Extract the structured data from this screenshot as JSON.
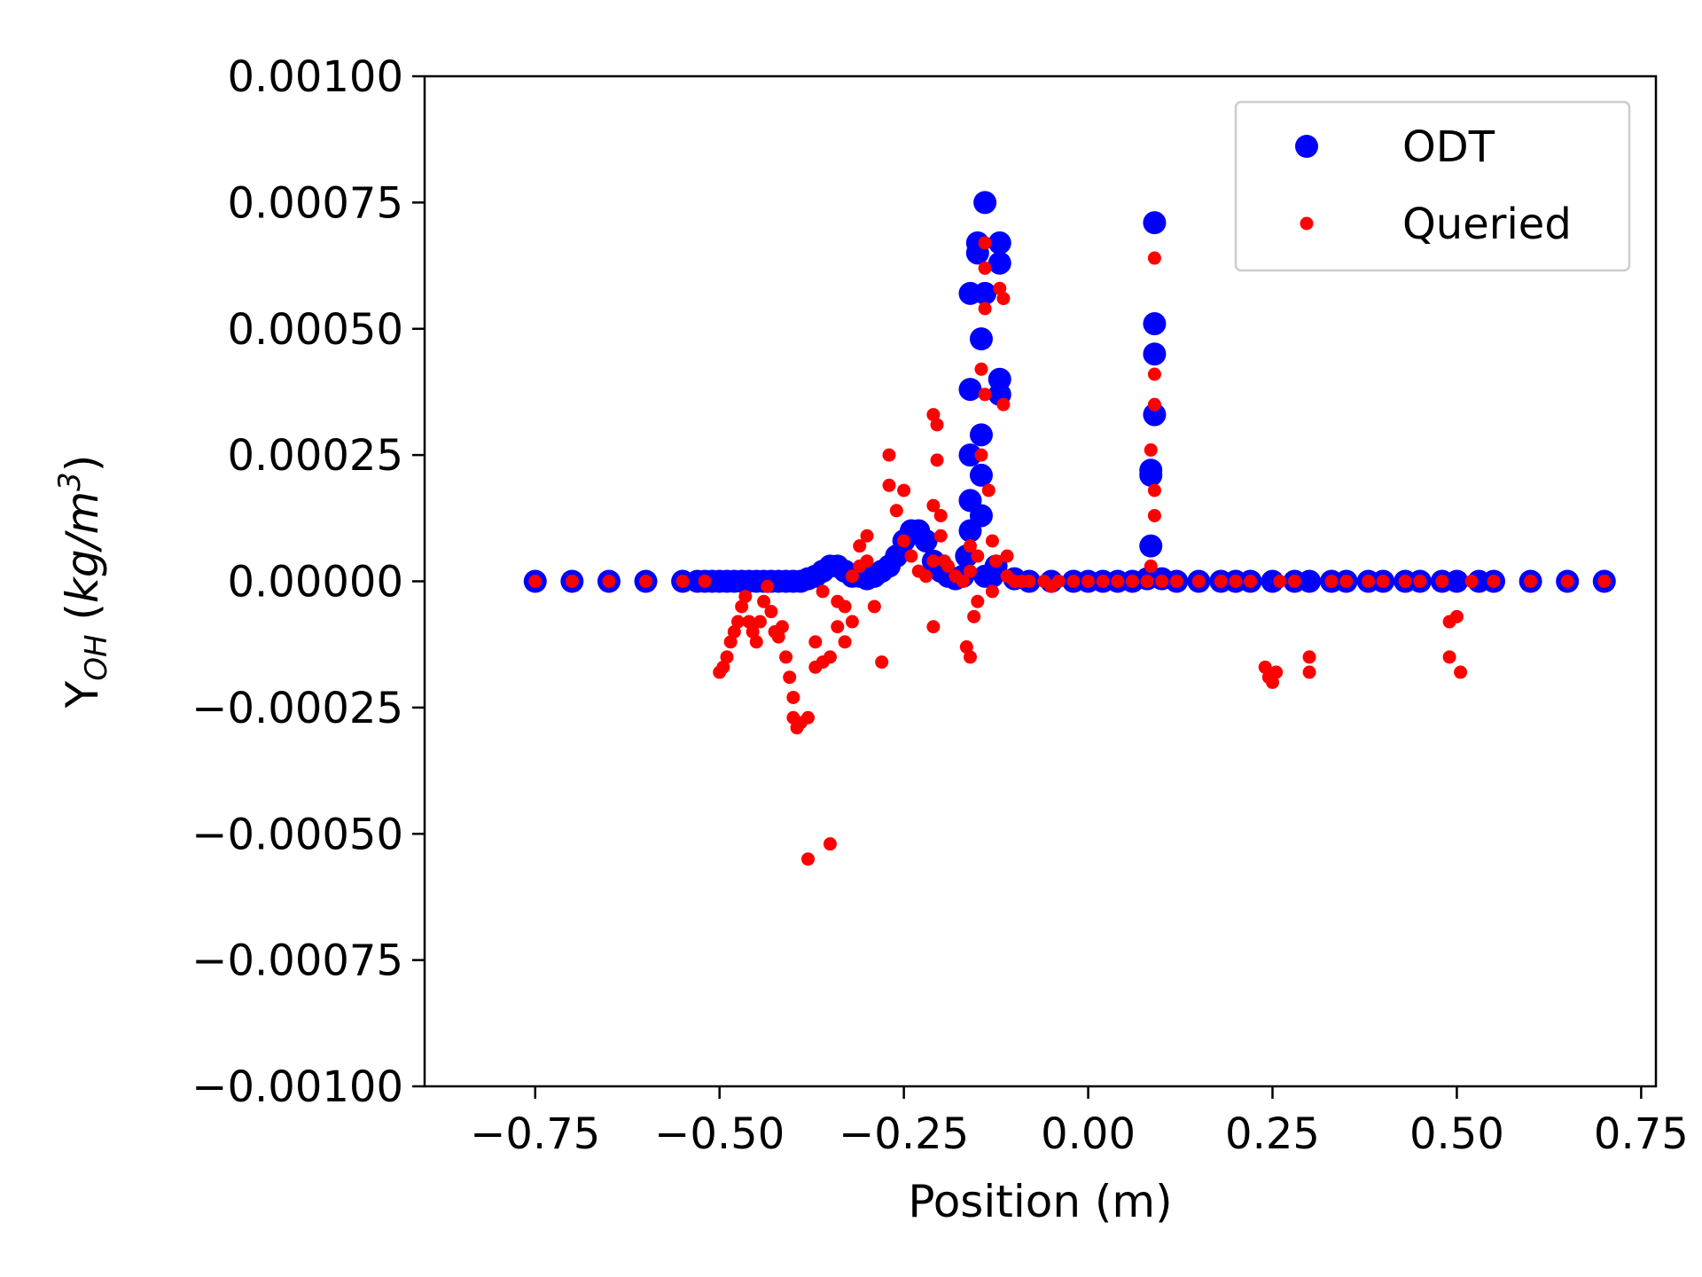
{
  "chart_data": {
    "type": "scatter",
    "title": "",
    "xlabel": "Position (m)",
    "ylabel": {
      "base": "Y",
      "subscript": "OH",
      "units_open": " (",
      "units_main": "kg/m",
      "units_sup": "3",
      "units_close": ")"
    },
    "xlim": [
      -0.9,
      0.77
    ],
    "ylim": [
      -0.001,
      0.001
    ],
    "x_ticks": [
      -0.75,
      -0.5,
      -0.25,
      0.0,
      0.25,
      0.5,
      0.75
    ],
    "x_tick_labels": [
      "−0.75",
      "−0.50",
      "−0.25",
      "0.00",
      "0.25",
      "0.50",
      "0.75"
    ],
    "y_ticks": [
      -0.001,
      -0.00075,
      -0.0005,
      -0.00025,
      0.0,
      0.00025,
      0.0005,
      0.00075,
      0.001
    ],
    "y_tick_labels": [
      "−0.00100",
      "−0.00075",
      "−0.00050",
      "−0.00025",
      "0.00000",
      "0.00025",
      "0.00050",
      "0.00075",
      "0.00100"
    ],
    "grid": false,
    "legend_position": "top-right",
    "series": [
      {
        "name": "ODT",
        "color": "#0000ff",
        "marker": "large-circle",
        "points": [
          [
            -0.75,
            0
          ],
          [
            -0.7,
            0
          ],
          [
            -0.65,
            0
          ],
          [
            -0.6,
            0
          ],
          [
            -0.55,
            0
          ],
          [
            -0.53,
            0
          ],
          [
            -0.52,
            0
          ],
          [
            -0.51,
            0
          ],
          [
            -0.5,
            0
          ],
          [
            -0.49,
            0
          ],
          [
            -0.48,
            0
          ],
          [
            -0.47,
            0
          ],
          [
            -0.46,
            0
          ],
          [
            -0.45,
            0
          ],
          [
            -0.44,
            0
          ],
          [
            -0.43,
            0
          ],
          [
            -0.42,
            0
          ],
          [
            -0.41,
            0
          ],
          [
            -0.4,
            0
          ],
          [
            -0.39,
            0
          ],
          [
            -0.38,
            5e-06
          ],
          [
            -0.37,
            1e-05
          ],
          [
            -0.36,
            2e-05
          ],
          [
            -0.35,
            3e-05
          ],
          [
            -0.34,
            3e-05
          ],
          [
            -0.33,
            2e-05
          ],
          [
            -0.32,
            1e-05
          ],
          [
            -0.31,
            1e-05
          ],
          [
            -0.3,
            5e-06
          ],
          [
            -0.29,
            1e-05
          ],
          [
            -0.28,
            2e-05
          ],
          [
            -0.27,
            3e-05
          ],
          [
            -0.26,
            5e-05
          ],
          [
            -0.25,
            8e-05
          ],
          [
            -0.24,
            0.0001
          ],
          [
            -0.23,
            0.0001
          ],
          [
            -0.22,
            8e-05
          ],
          [
            -0.21,
            4e-05
          ],
          [
            -0.2,
            2e-05
          ],
          [
            -0.19,
            1e-05
          ],
          [
            -0.18,
            5e-06
          ],
          [
            -0.17,
            1e-05
          ],
          [
            -0.165,
            5e-05
          ],
          [
            -0.16,
            0.0001
          ],
          [
            -0.16,
            0.00016
          ],
          [
            -0.16,
            0.00025
          ],
          [
            -0.16,
            0.00038
          ],
          [
            -0.16,
            0.00057
          ],
          [
            -0.15,
            0.00065
          ],
          [
            -0.15,
            0.00067
          ],
          [
            -0.145,
            0.00013
          ],
          [
            -0.145,
            0.00021
          ],
          [
            -0.145,
            0.00029
          ],
          [
            -0.145,
            0.00048
          ],
          [
            -0.14,
            0.00057
          ],
          [
            -0.14,
            0.00075
          ],
          [
            -0.14,
            1e-05
          ],
          [
            -0.13,
            1e-05
          ],
          [
            -0.12,
            0.00067
          ],
          [
            -0.12,
            0.00063
          ],
          [
            -0.12,
            0.0004
          ],
          [
            -0.12,
            0.00037
          ],
          [
            -0.125,
            3e-05
          ],
          [
            -0.1,
            5e-06
          ],
          [
            -0.08,
            0
          ],
          [
            -0.05,
            0
          ],
          [
            -0.02,
            0
          ],
          [
            0.0,
            0
          ],
          [
            0.02,
            0
          ],
          [
            0.04,
            0
          ],
          [
            0.06,
            0
          ],
          [
            0.08,
            5e-06
          ],
          [
            0.085,
            7e-05
          ],
          [
            0.085,
            0.00021
          ],
          [
            0.085,
            0.00022
          ],
          [
            0.09,
            0.00033
          ],
          [
            0.09,
            0.00045
          ],
          [
            0.09,
            0.00051
          ],
          [
            0.09,
            0.00071
          ],
          [
            0.1,
            5e-06
          ],
          [
            0.12,
            0
          ],
          [
            0.15,
            0
          ],
          [
            0.18,
            0
          ],
          [
            0.2,
            0
          ],
          [
            0.22,
            0
          ],
          [
            0.25,
            0
          ],
          [
            0.28,
            0
          ],
          [
            0.3,
            0
          ],
          [
            0.33,
            0
          ],
          [
            0.35,
            0
          ],
          [
            0.38,
            0
          ],
          [
            0.4,
            0
          ],
          [
            0.43,
            0
          ],
          [
            0.45,
            0
          ],
          [
            0.48,
            0
          ],
          [
            0.5,
            0
          ],
          [
            0.53,
            0
          ],
          [
            0.55,
            0
          ],
          [
            0.6,
            0
          ],
          [
            0.65,
            0
          ],
          [
            0.7,
            0
          ]
        ]
      },
      {
        "name": "Queried",
        "color": "#ff0000",
        "marker": "small-circle",
        "points": [
          [
            -0.75,
            0
          ],
          [
            -0.7,
            0
          ],
          [
            -0.65,
            0
          ],
          [
            -0.6,
            0
          ],
          [
            -0.55,
            0
          ],
          [
            -0.52,
            0
          ],
          [
            -0.5,
            -0.00018
          ],
          [
            -0.495,
            -0.00017
          ],
          [
            -0.49,
            -0.00015
          ],
          [
            -0.485,
            -0.00012
          ],
          [
            -0.48,
            -0.0001
          ],
          [
            -0.475,
            -8e-05
          ],
          [
            -0.47,
            -5e-05
          ],
          [
            -0.465,
            -3e-05
          ],
          [
            -0.46,
            -8e-05
          ],
          [
            -0.455,
            -0.0001
          ],
          [
            -0.45,
            -0.00012
          ],
          [
            -0.445,
            -8e-05
          ],
          [
            -0.44,
            -4e-05
          ],
          [
            -0.435,
            -1e-05
          ],
          [
            -0.43,
            -6e-05
          ],
          [
            -0.425,
            -0.0001
          ],
          [
            -0.42,
            -0.00011
          ],
          [
            -0.415,
            -9e-05
          ],
          [
            -0.41,
            -0.00015
          ],
          [
            -0.405,
            -0.00019
          ],
          [
            -0.4,
            -0.00023
          ],
          [
            -0.4,
            -0.00027
          ],
          [
            -0.395,
            -0.00029
          ],
          [
            -0.39,
            -0.00028
          ],
          [
            -0.38,
            -0.00027
          ],
          [
            -0.38,
            -0.00055
          ],
          [
            -0.37,
            -0.00012
          ],
          [
            -0.37,
            -0.00017
          ],
          [
            -0.36,
            -0.00016
          ],
          [
            -0.36,
            -2e-05
          ],
          [
            -0.35,
            -0.00052
          ],
          [
            -0.35,
            -0.00015
          ],
          [
            -0.34,
            -4e-05
          ],
          [
            -0.34,
            -9e-05
          ],
          [
            -0.33,
            -5e-05
          ],
          [
            -0.33,
            -0.00012
          ],
          [
            -0.32,
            -8e-05
          ],
          [
            -0.32,
            1e-05
          ],
          [
            -0.31,
            3e-05
          ],
          [
            -0.31,
            7e-05
          ],
          [
            -0.3,
            4e-05
          ],
          [
            -0.3,
            9e-05
          ],
          [
            -0.29,
            -5e-05
          ],
          [
            -0.28,
            -0.00016
          ],
          [
            -0.27,
            0.00019
          ],
          [
            -0.27,
            0.00025
          ],
          [
            -0.26,
            0.00014
          ],
          [
            -0.25,
            0.00018
          ],
          [
            -0.25,
            8e-05
          ],
          [
            -0.24,
            5e-05
          ],
          [
            -0.23,
            2e-05
          ],
          [
            -0.22,
            1e-05
          ],
          [
            -0.21,
            0.00015
          ],
          [
            -0.21,
            0.00033
          ],
          [
            -0.205,
            0.00031
          ],
          [
            -0.205,
            0.00024
          ],
          [
            -0.2,
            0.00013
          ],
          [
            -0.2,
            9e-05
          ],
          [
            -0.195,
            4e-05
          ],
          [
            -0.19,
            3e-05
          ],
          [
            -0.21,
            -9e-05
          ],
          [
            -0.21,
            4e-05
          ],
          [
            -0.18,
            1e-05
          ],
          [
            -0.17,
            0
          ],
          [
            -0.165,
            -0.00013
          ],
          [
            -0.16,
            -0.00015
          ],
          [
            -0.16,
            7e-05
          ],
          [
            -0.16,
            2e-05
          ],
          [
            -0.155,
            -7e-05
          ],
          [
            -0.15,
            5e-05
          ],
          [
            -0.15,
            -4e-05
          ],
          [
            -0.145,
            0.00025
          ],
          [
            -0.145,
            0.00042
          ],
          [
            -0.14,
            0.00062
          ],
          [
            -0.14,
            0.00067
          ],
          [
            -0.14,
            0.00054
          ],
          [
            -0.14,
            0.00037
          ],
          [
            -0.135,
            0.00018
          ],
          [
            -0.13,
            8e-05
          ],
          [
            -0.13,
            -2e-05
          ],
          [
            -0.125,
            4e-05
          ],
          [
            -0.12,
            0.00058
          ],
          [
            -0.115,
            0.00056
          ],
          [
            -0.115,
            0.00035
          ],
          [
            -0.11,
            5e-05
          ],
          [
            -0.11,
            1e-05
          ],
          [
            -0.1,
            0
          ],
          [
            -0.09,
            0
          ],
          [
            -0.08,
            0
          ],
          [
            -0.06,
            0
          ],
          [
            -0.05,
            -1e-05
          ],
          [
            -0.04,
            0
          ],
          [
            -0.02,
            0
          ],
          [
            0.0,
            0
          ],
          [
            0.02,
            0
          ],
          [
            0.04,
            0
          ],
          [
            0.06,
            0
          ],
          [
            0.08,
            0
          ],
          [
            0.085,
            3e-05
          ],
          [
            0.085,
            0.00026
          ],
          [
            0.09,
            0.00018
          ],
          [
            0.09,
            0.00035
          ],
          [
            0.09,
            0.00041
          ],
          [
            0.09,
            0.00064
          ],
          [
            0.09,
            0.00013
          ],
          [
            0.1,
            0
          ],
          [
            0.12,
            0
          ],
          [
            0.15,
            0
          ],
          [
            0.18,
            0
          ],
          [
            0.2,
            0
          ],
          [
            0.22,
            0
          ],
          [
            0.24,
            -0.00017
          ],
          [
            0.245,
            -0.00019
          ],
          [
            0.25,
            -0.0002
          ],
          [
            0.255,
            -0.00018
          ],
          [
            0.26,
            0
          ],
          [
            0.28,
            0
          ],
          [
            0.3,
            -0.00015
          ],
          [
            0.3,
            -0.00018
          ],
          [
            0.33,
            0
          ],
          [
            0.35,
            0
          ],
          [
            0.38,
            0
          ],
          [
            0.4,
            0
          ],
          [
            0.43,
            0
          ],
          [
            0.45,
            0
          ],
          [
            0.48,
            0
          ],
          [
            0.49,
            -8e-05
          ],
          [
            0.49,
            -0.00015
          ],
          [
            0.5,
            -7e-05
          ],
          [
            0.505,
            -0.00018
          ],
          [
            0.52,
            0
          ],
          [
            0.55,
            0
          ],
          [
            0.6,
            0
          ],
          [
            0.65,
            0
          ],
          [
            0.7,
            0
          ]
        ]
      }
    ]
  }
}
